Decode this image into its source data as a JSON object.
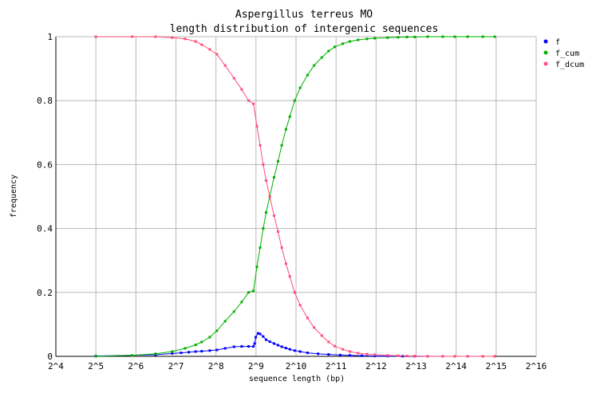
{
  "chart_data": {
    "type": "line",
    "title": "Aspergillus terreus MO",
    "subtitle": "length distribution of intergenic sequences",
    "xlabel": "sequence length (bp)",
    "ylabel": "frequency",
    "x_scale": "log2",
    "xlim_exponent": [
      4,
      16
    ],
    "ylim": [
      0,
      1
    ],
    "grid": true,
    "legend_position": "top-right",
    "x_tick_labels": [
      "2^4",
      "2^5",
      "2^6",
      "2^7",
      "2^8",
      "2^9",
      "2^10",
      "2^11",
      "2^12",
      "2^13",
      "2^14",
      "2^15",
      "2^16"
    ],
    "y_tick_labels": [
      "0",
      "0.2",
      "0.4",
      "0.6",
      "0.8",
      "1"
    ],
    "y_ticks": [
      0,
      0.2,
      0.4,
      0.6,
      0.8,
      1
    ],
    "series": [
      {
        "name": "f",
        "color": "#0000ff",
        "x": [
          32,
          90,
          120,
          140,
          160,
          180,
          200,
          230,
          260,
          300,
          350,
          400,
          450,
          490,
          500,
          510,
          530,
          550,
          580,
          610,
          650,
          700,
          750,
          800,
          860,
          920,
          1000,
          1100,
          1250,
          1500,
          1800,
          2200,
          2600,
          3200,
          4000,
          5000,
          6500,
          8000,
          10000,
          13000,
          16000,
          20000,
          26000,
          32000
        ],
        "y": [
          0.001,
          0.005,
          0.009,
          0.011,
          0.013,
          0.015,
          0.016,
          0.018,
          0.02,
          0.025,
          0.03,
          0.031,
          0.031,
          0.031,
          0.04,
          0.06,
          0.072,
          0.07,
          0.062,
          0.052,
          0.046,
          0.04,
          0.035,
          0.03,
          0.026,
          0.022,
          0.018,
          0.015,
          0.011,
          0.008,
          0.006,
          0.004,
          0.003,
          0.002,
          0.001,
          0.0008,
          0.0005,
          0.0003,
          0.0002,
          0.0001,
          0.0001,
          0.0001,
          0.0001,
          0.0001
        ]
      },
      {
        "name": "f_cum",
        "color": "#00b000",
        "x": [
          32,
          60,
          90,
          120,
          150,
          180,
          200,
          230,
          260,
          300,
          350,
          400,
          450,
          490,
          520,
          550,
          580,
          610,
          650,
          700,
          750,
          800,
          860,
          920,
          1000,
          1100,
          1250,
          1400,
          1600,
          1800,
          2000,
          2300,
          2600,
          3000,
          3500,
          4000,
          5000,
          6000,
          7000,
          8000,
          10000,
          13000,
          16000,
          20000,
          26000,
          32000
        ],
        "y": [
          0.0,
          0.003,
          0.008,
          0.015,
          0.025,
          0.036,
          0.045,
          0.06,
          0.08,
          0.11,
          0.14,
          0.17,
          0.2,
          0.205,
          0.28,
          0.34,
          0.4,
          0.45,
          0.5,
          0.56,
          0.61,
          0.66,
          0.71,
          0.75,
          0.8,
          0.84,
          0.88,
          0.91,
          0.935,
          0.955,
          0.968,
          0.978,
          0.985,
          0.99,
          0.993,
          0.995,
          0.997,
          0.998,
          0.999,
          0.999,
          1.0,
          1.0,
          1.0,
          1.0,
          1.0,
          1.0
        ]
      },
      {
        "name": "f_dcum",
        "color": "#ff4d7a",
        "x": [
          32,
          60,
          90,
          120,
          150,
          180,
          200,
          230,
          260,
          300,
          350,
          400,
          450,
          490,
          520,
          550,
          580,
          610,
          650,
          700,
          750,
          800,
          860,
          920,
          1000,
          1100,
          1250,
          1400,
          1600,
          1800,
          2000,
          2300,
          2600,
          3000,
          3500,
          4000,
          5000,
          6000,
          7000,
          8000,
          10000,
          13000,
          16000,
          20000,
          26000,
          32000
        ],
        "y": [
          1.0,
          1.0,
          1.0,
          0.997,
          0.993,
          0.985,
          0.975,
          0.96,
          0.945,
          0.91,
          0.87,
          0.835,
          0.8,
          0.79,
          0.72,
          0.66,
          0.6,
          0.55,
          0.5,
          0.44,
          0.39,
          0.34,
          0.29,
          0.25,
          0.2,
          0.16,
          0.12,
          0.09,
          0.065,
          0.045,
          0.032,
          0.022,
          0.015,
          0.01,
          0.007,
          0.005,
          0.003,
          0.002,
          0.001,
          0.001,
          0.0,
          0.0,
          0.0,
          0.0,
          0.0,
          0.0
        ]
      }
    ]
  }
}
